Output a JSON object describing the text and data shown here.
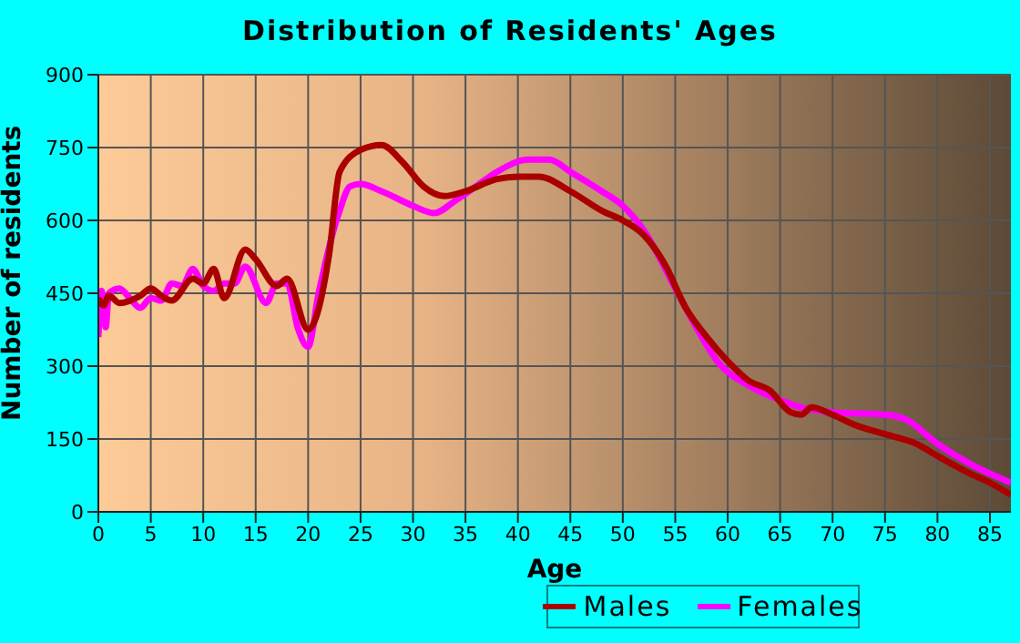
{
  "chart_data": {
    "type": "line",
    "title": "Distribution of Residents' Ages",
    "xlabel": "Age",
    "ylabel": "Number of residents",
    "xlim": [
      0,
      87
    ],
    "xticks": [
      0,
      5,
      10,
      15,
      20,
      25,
      30,
      35,
      40,
      45,
      50,
      55,
      60,
      65,
      70,
      75,
      80,
      85
    ],
    "ylim": [
      0,
      900
    ],
    "yticks": [
      0,
      150,
      300,
      450,
      600,
      750,
      900
    ],
    "grid": true,
    "legend": "bottom",
    "marker": "none",
    "line_style": "solid",
    "series": [
      {
        "name": "Males",
        "color": "#aa0000",
        "x": [
          0,
          0.5,
          1,
          2,
          4,
          5,
          6,
          7,
          9,
          10,
          11,
          12,
          14,
          15,
          17,
          18,
          20,
          22,
          23,
          25,
          27,
          29,
          31,
          33,
          35,
          38,
          40,
          42,
          45,
          48,
          50,
          52,
          54,
          56,
          58,
          60,
          62,
          64,
          66,
          67,
          68,
          70,
          72,
          75,
          78,
          80,
          83,
          85,
          87
        ],
        "values": [
          440,
          425,
          445,
          430,
          445,
          460,
          445,
          435,
          480,
          470,
          500,
          440,
          540,
          520,
          465,
          480,
          375,
          530,
          700,
          745,
          755,
          720,
          670,
          650,
          660,
          685,
          690,
          690,
          660,
          620,
          600,
          570,
          510,
          420,
          360,
          310,
          270,
          250,
          205,
          200,
          215,
          200,
          180,
          160,
          140,
          115,
          80,
          60,
          35
        ]
      },
      {
        "name": "Females",
        "color": "#ff00ff",
        "x": [
          0,
          0.3,
          0.7,
          1,
          2,
          3,
          4,
          5,
          6,
          7,
          8,
          9,
          10,
          11,
          12,
          13,
          14,
          16,
          17,
          18,
          19,
          20,
          21,
          23,
          24,
          25,
          27,
          30,
          32,
          34,
          36,
          38,
          41,
          43,
          45,
          48,
          50,
          52,
          55,
          57,
          59,
          62,
          65,
          67,
          70,
          75,
          77,
          80,
          83,
          87
        ],
        "values": [
          360,
          455,
          380,
          450,
          460,
          440,
          420,
          440,
          435,
          470,
          465,
          500,
          465,
          455,
          470,
          470,
          505,
          430,
          470,
          470,
          380,
          340,
          450,
          620,
          670,
          675,
          660,
          630,
          615,
          640,
          670,
          700,
          725,
          725,
          700,
          660,
          630,
          580,
          460,
          380,
          310,
          260,
          230,
          215,
          205,
          200,
          190,
          140,
          100,
          60
        ]
      }
    ]
  }
}
